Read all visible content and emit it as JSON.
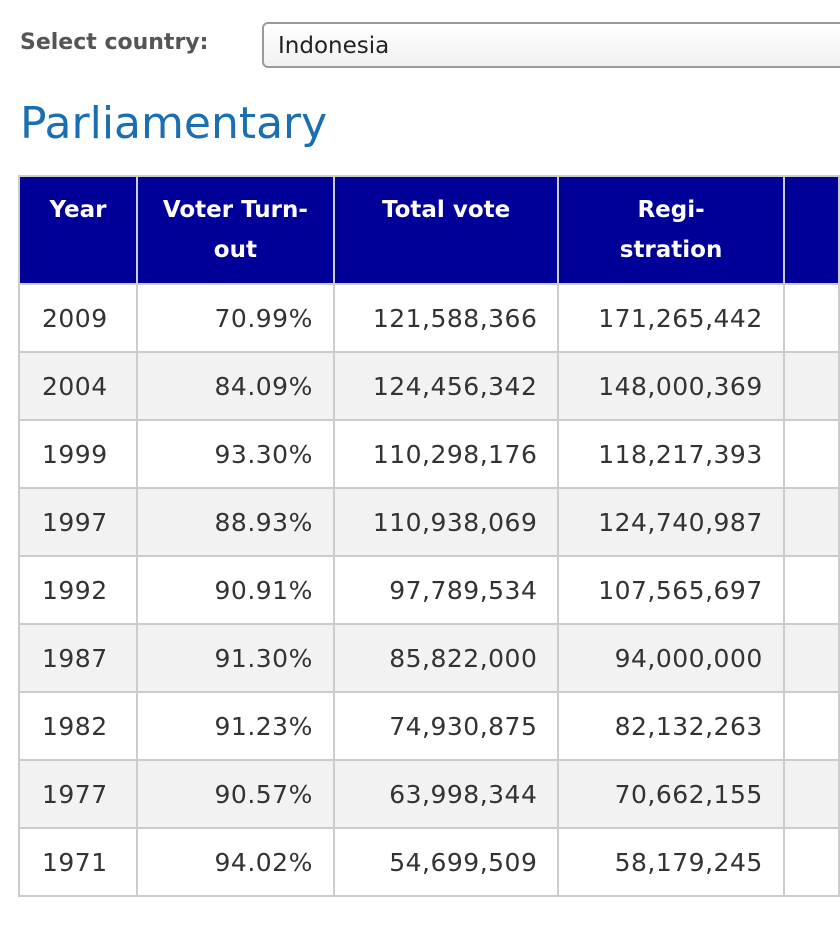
{
  "select": {
    "label": "Select country:",
    "value": "Indonesia"
  },
  "section_title": "Parliamentary",
  "table": {
    "headers": {
      "year": "Year",
      "turnout_line1": "Voter Turn-",
      "turnout_line2": "out",
      "total_vote": "Total vote",
      "registration_line1": "Regi-",
      "registration_line2": "stration"
    },
    "rows": [
      {
        "year": "2009",
        "turnout": "70.99%",
        "total_vote": "121,588,366",
        "registration": "171,265,442"
      },
      {
        "year": "2004",
        "turnout": "84.09%",
        "total_vote": "124,456,342",
        "registration": "148,000,369"
      },
      {
        "year": "1999",
        "turnout": "93.30%",
        "total_vote": "110,298,176",
        "registration": "118,217,393"
      },
      {
        "year": "1997",
        "turnout": "88.93%",
        "total_vote": "110,938,069",
        "registration": "124,740,987"
      },
      {
        "year": "1992",
        "turnout": "90.91%",
        "total_vote": "97,789,534",
        "registration": "107,565,697"
      },
      {
        "year": "1987",
        "turnout": "91.30%",
        "total_vote": "85,822,000",
        "registration": "94,000,000"
      },
      {
        "year": "1982",
        "turnout": "91.23%",
        "total_vote": "74,930,875",
        "registration": "82,132,263"
      },
      {
        "year": "1977",
        "turnout": "90.57%",
        "total_vote": "63,998,344",
        "registration": "70,662,155"
      },
      {
        "year": "1971",
        "turnout": "94.02%",
        "total_vote": "54,699,509",
        "registration": "58,179,245"
      }
    ]
  },
  "colors": {
    "header_bg": "#000099",
    "title": "#1a6fb4",
    "alt_row": "#f2f2f2"
  }
}
